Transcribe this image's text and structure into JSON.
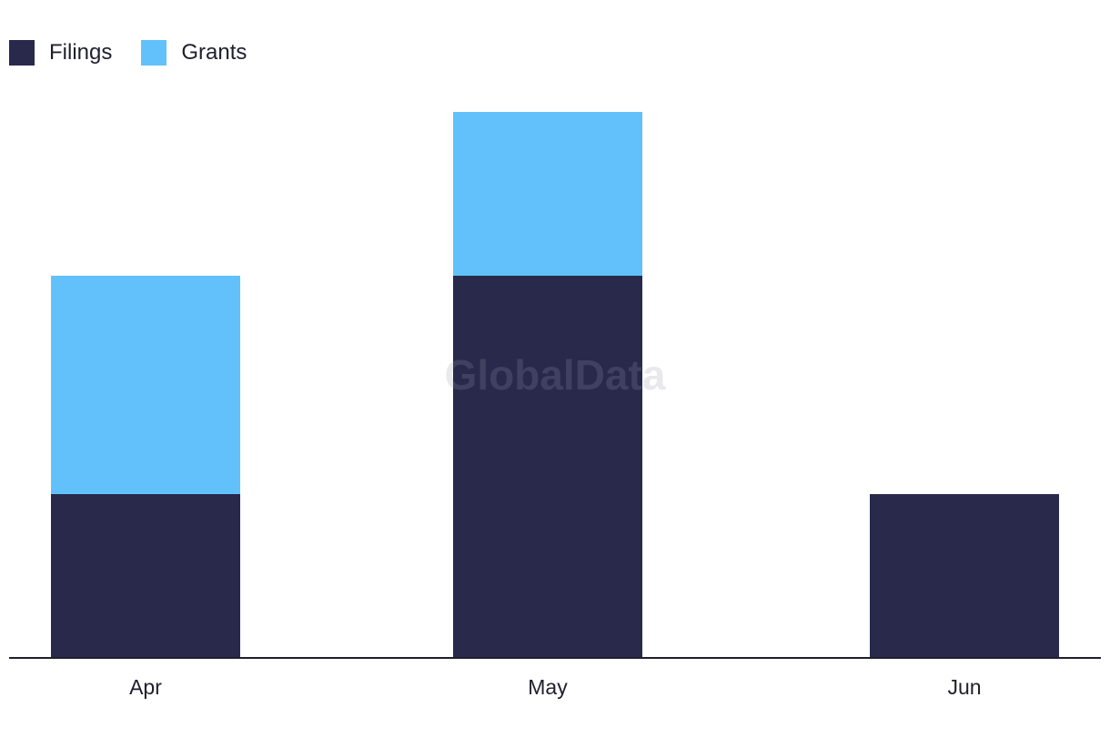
{
  "chart_data": {
    "type": "bar",
    "stacked": true,
    "categories": [
      "Apr",
      "May",
      "Jun"
    ],
    "series": [
      {
        "name": "Filings",
        "values": [
          3,
          7,
          3
        ],
        "color": "#28294b"
      },
      {
        "name": "Grants",
        "values": [
          4,
          3,
          0
        ],
        "color": "#62c1fa"
      }
    ],
    "ylim": [
      0,
      10
    ],
    "grid": false,
    "legend_position": "top-left",
    "title": "",
    "xlabel": "",
    "ylabel": ""
  },
  "legend": {
    "items": [
      {
        "label": "Filings",
        "color": "#28294b"
      },
      {
        "label": "Grants",
        "color": "#62c1fa"
      }
    ]
  },
  "watermark": "GlobalData"
}
